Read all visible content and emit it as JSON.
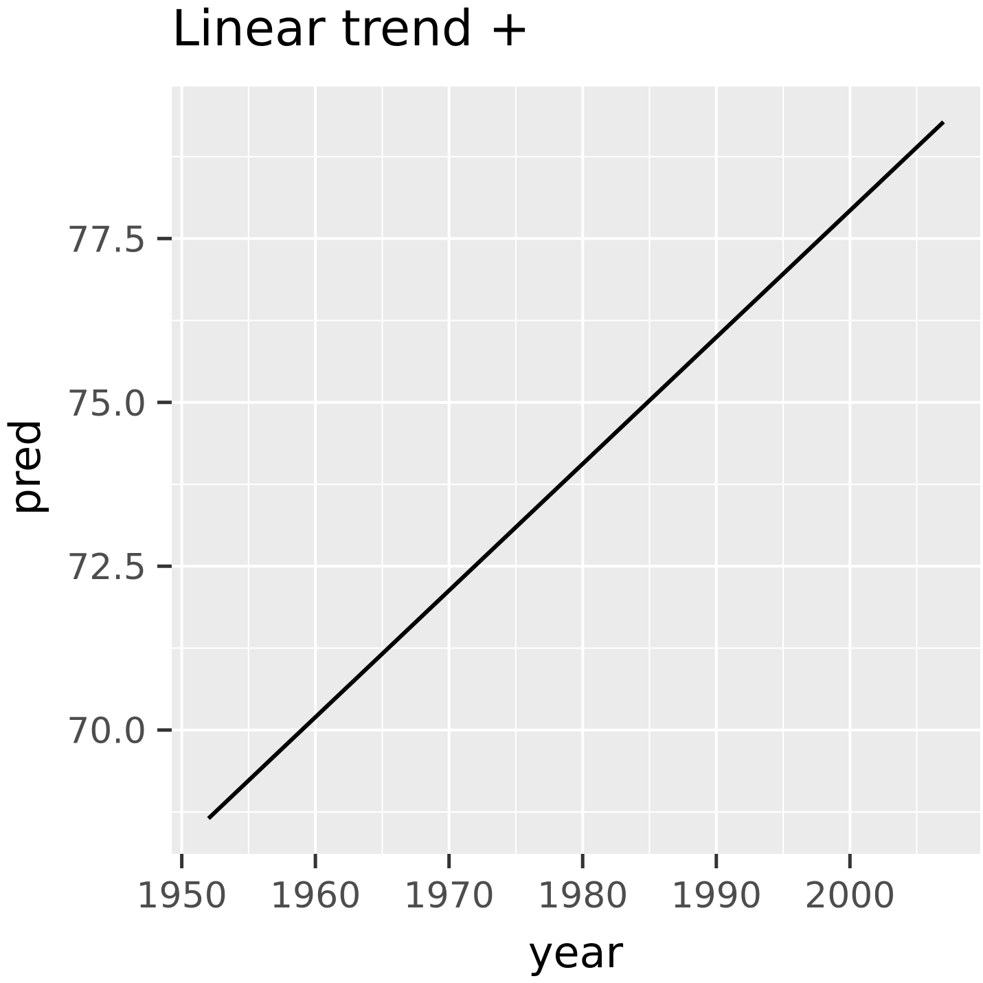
{
  "chart_data": {
    "type": "line",
    "title": "Linear trend +",
    "xlabel": "year",
    "ylabel": "pred",
    "x": [
      1952,
      2007
    ],
    "y": [
      68.65,
      79.28
    ],
    "xlim": [
      1949.25,
      2009.75
    ],
    "ylim": [
      68.11,
      79.82
    ],
    "x_ticks": [
      1950,
      1960,
      1970,
      1980,
      1990,
      2000
    ],
    "x_tick_labels": [
      "1950",
      "1960",
      "1970",
      "1980",
      "1990",
      "2000"
    ],
    "x_minor_ticks": [
      1955,
      1965,
      1975,
      1985,
      1995,
      2005
    ],
    "y_ticks": [
      70.0,
      72.5,
      75.0,
      77.5
    ],
    "y_tick_labels": [
      "70.0",
      "72.5",
      "75.0",
      "77.5"
    ],
    "y_minor_ticks": [
      68.75,
      71.25,
      73.75,
      76.25,
      78.75
    ],
    "grid": true,
    "legend": "none",
    "colors": {
      "panel_background": "#ebebeb",
      "line": "#000000",
      "tick_label": "#4d4d4d"
    }
  }
}
